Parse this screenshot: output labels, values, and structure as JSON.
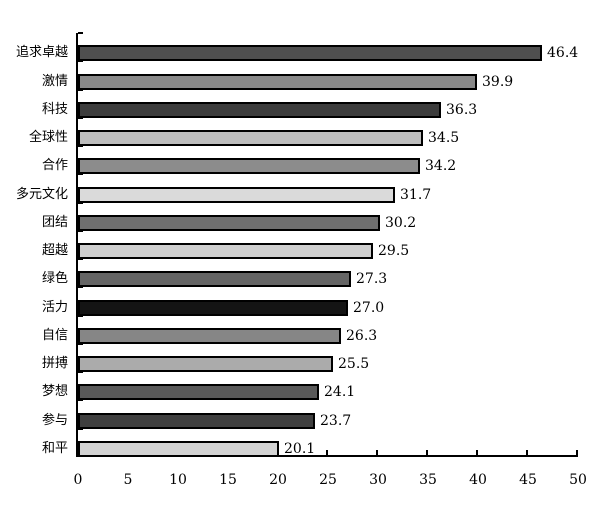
{
  "chart_data": {
    "type": "bar",
    "orientation": "horizontal",
    "title": "",
    "categories": [
      "追求卓越",
      "激情",
      "科技",
      "全球性",
      "合作",
      "多元文化",
      "团结",
      "超越",
      "绿色",
      "活力",
      "自信",
      "拼搏",
      "梦想",
      "参与",
      "和平"
    ],
    "values": [
      46.4,
      39.9,
      36.3,
      34.5,
      34.2,
      31.7,
      30.2,
      29.5,
      27.3,
      27.0,
      26.3,
      25.5,
      24.1,
      23.7,
      20.1
    ],
    "value_labels": [
      "46.4",
      "39.9",
      "36.3",
      "34.5",
      "34.2",
      "31.7",
      "30.2",
      "29.5",
      "27.3",
      "27.0",
      "26.3",
      "25.5",
      "24.1",
      "23.7",
      "20.1"
    ],
    "bar_colors": [
      "#4f4f4f",
      "#898989",
      "#3c3c3c",
      "#bdbdbd",
      "#8c8c8c",
      "#dadada",
      "#6f6f6f",
      "#cecece",
      "#656565",
      "#141414",
      "#868686",
      "#ababab",
      "#595959",
      "#3f3f3f",
      "#d3d3d3"
    ],
    "bar_border_color": "#000000",
    "x_ticks": [
      0,
      5,
      10,
      15,
      20,
      25,
      30,
      35,
      40,
      45,
      50
    ],
    "x_tick_labels": [
      "0",
      "5",
      "10",
      "15",
      "20",
      "25",
      "30",
      "35",
      "40",
      "45",
      "50"
    ],
    "xlim": [
      0,
      50
    ],
    "grid": false,
    "legend": null,
    "axis_color": "#000000",
    "background": "#ffffff"
  }
}
